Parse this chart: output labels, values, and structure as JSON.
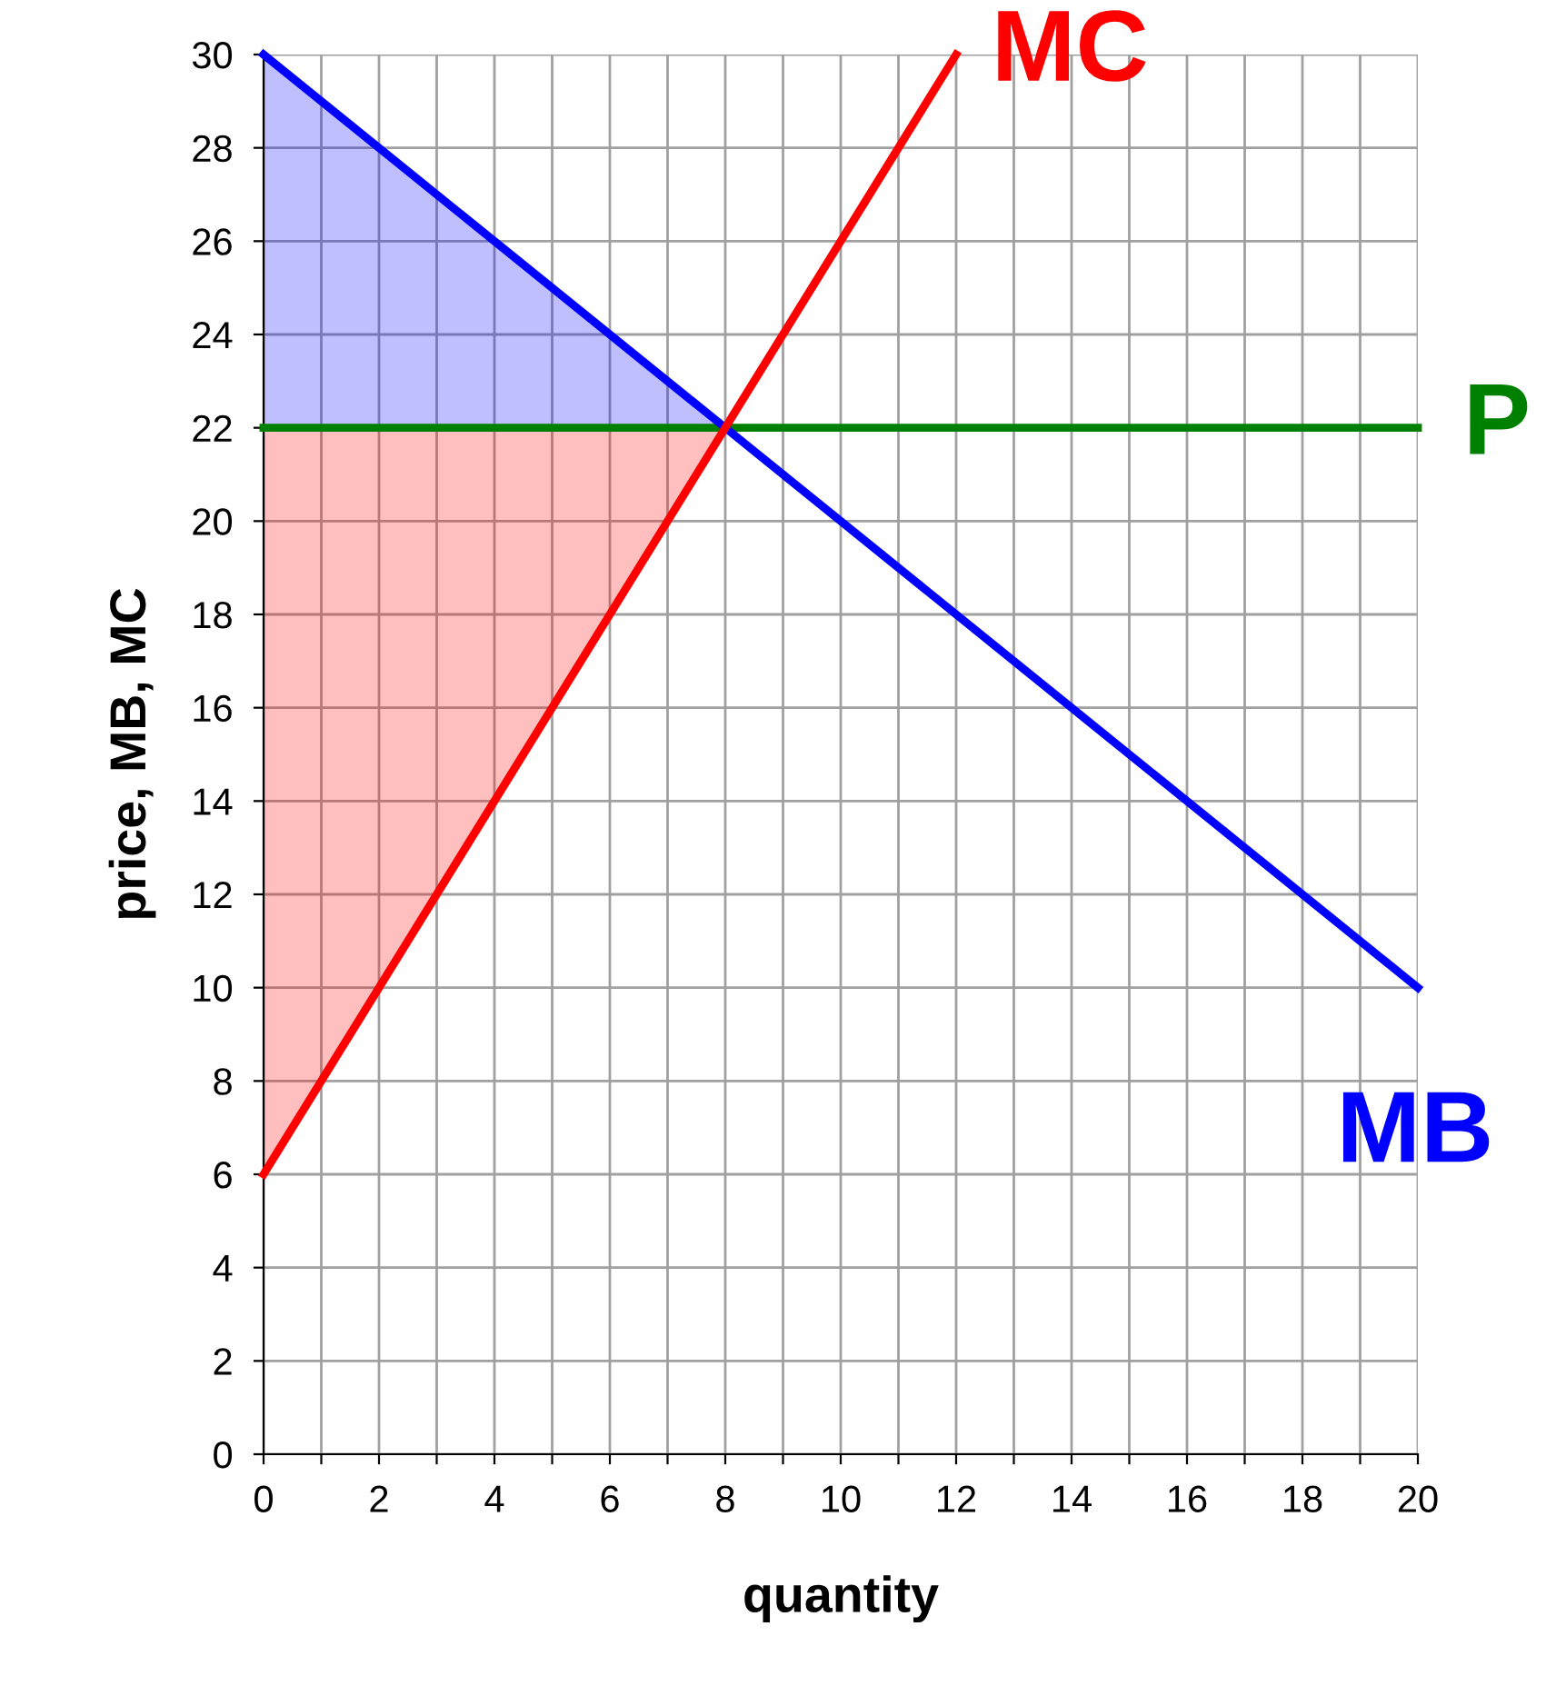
{
  "chart_data": {
    "type": "line",
    "xlabel": "quantity",
    "ylabel": "price, MB, MC",
    "xlim": [
      0,
      20
    ],
    "ylim": [
      0,
      30
    ],
    "xticks": [
      0,
      {
        "value": 1,
        "label": null
      },
      2,
      {
        "value": 3,
        "label": null
      },
      4,
      {
        "value": 5,
        "label": null
      },
      6,
      {
        "value": 7,
        "label": null
      },
      8,
      {
        "value": 9,
        "label": null
      },
      10,
      {
        "value": 11,
        "label": null
      },
      12,
      {
        "value": 13,
        "label": null
      },
      14,
      {
        "value": 15,
        "label": null
      },
      16,
      {
        "value": 17,
        "label": null
      },
      18,
      {
        "value": 19,
        "label": null
      },
      20
    ],
    "yticks": [
      0,
      2,
      4,
      6,
      8,
      10,
      12,
      14,
      16,
      18,
      20,
      22,
      24,
      26,
      28,
      30
    ],
    "grid": true,
    "legend": false,
    "marker": "none",
    "line_style": "solid",
    "series": [
      {
        "name": "P",
        "color": "#008000",
        "x": [
          0,
          20
        ],
        "values": [
          22,
          22
        ]
      },
      {
        "name": "MB",
        "color": "#0000ff",
        "x": [
          0,
          8,
          20
        ],
        "values": [
          30,
          22,
          10
        ],
        "lower": [
          22,
          22,
          null
        ],
        "upper": [
          30,
          22,
          null
        ]
      },
      {
        "name": "MC",
        "color": "#ff0000",
        "x": [
          0,
          8,
          12
        ],
        "values": [
          6,
          22,
          30
        ],
        "lower": [
          6,
          22,
          null
        ],
        "upper": [
          22,
          22,
          null
        ]
      }
    ]
  }
}
